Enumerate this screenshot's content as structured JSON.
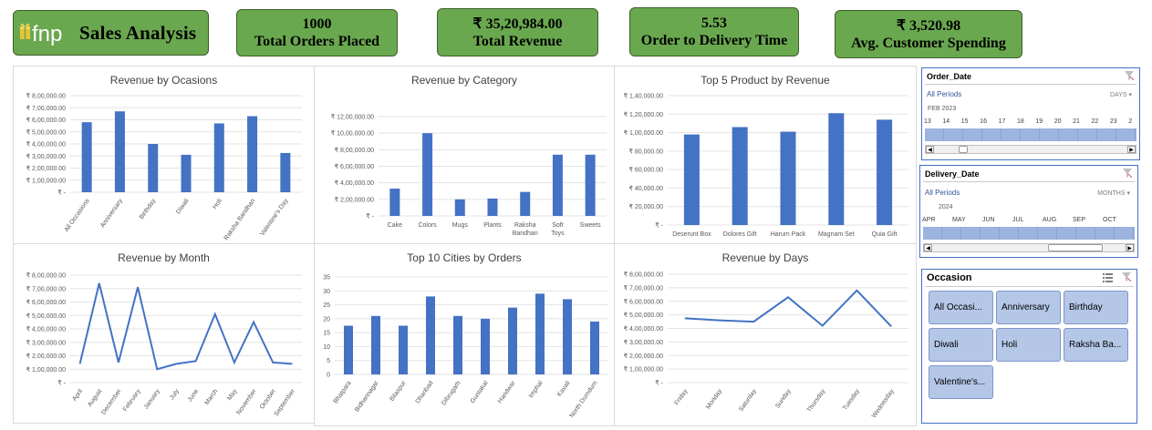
{
  "header": {
    "logo_text": "fnp",
    "title": "Sales Analysis",
    "kpis": [
      {
        "value": "1000",
        "label": "Total Orders Placed"
      },
      {
        "value": "₹ 35,20,984.00",
        "label": "Total Revenue"
      },
      {
        "value": "5.53",
        "label": "Order to Delivery Time"
      },
      {
        "value": "₹ 3,520.98",
        "label": "Avg. Customer Spending"
      }
    ]
  },
  "chart_data": [
    {
      "type": "bar",
      "title": "Revenue by Ocasions",
      "categories": [
        "All Occasions",
        "Anniversary",
        "Birthday",
        "Diwali",
        "Holi",
        "Raksha Bandhan",
        "Valentine's Day"
      ],
      "values": [
        580000,
        670000,
        400000,
        310000,
        570000,
        630000,
        325000
      ],
      "yticks": [
        "₹ -",
        "₹ 1,00,000.00",
        "₹ 2,00,000.00",
        "₹ 3,00,000.00",
        "₹ 4,00,000.00",
        "₹ 5,00,000.00",
        "₹ 6,00,000.00",
        "₹ 7,00,000.00",
        "₹ 8,00,000.00"
      ],
      "ylim": [
        0,
        800000
      ]
    },
    {
      "type": "bar",
      "title": "Revenue by Category",
      "categories": [
        "Cake",
        "Colors",
        "Mugs",
        "Plants",
        "Raksha Bandhan",
        "Soft Toys",
        "Sweets"
      ],
      "values": [
        330000,
        1000000,
        200000,
        210000,
        290000,
        740000,
        740000
      ],
      "yticks": [
        "₹ -",
        "₹ 2,00,000.00",
        "₹ 4,00,000.00",
        "₹ 6,00,000.00",
        "₹ 8,00,000.00",
        "₹ 10,00,000.00",
        "₹ 12,00,000.00"
      ],
      "ylim": [
        0,
        1200000
      ]
    },
    {
      "type": "bar",
      "title": "Top 5 Product by Revenue",
      "categories": [
        "Deserunt Box",
        "Dolores Gift",
        "Harum Pack",
        "Magnam Set",
        "Quia Gift"
      ],
      "values": [
        98000,
        106000,
        101000,
        121000,
        114000
      ],
      "yticks": [
        "₹ -",
        "₹ 20,000.00",
        "₹ 40,000.00",
        "₹ 60,000.00",
        "₹ 80,000.00",
        "₹ 1,00,000.00",
        "₹ 1,20,000.00",
        "₹ 1,40,000.00"
      ],
      "ylim": [
        0,
        140000
      ]
    },
    {
      "type": "line",
      "title": "Revenue by Month",
      "categories": [
        "April",
        "August",
        "December",
        "February",
        "January",
        "July",
        "June",
        "March",
        "May",
        "November",
        "October",
        "September"
      ],
      "values": [
        140000,
        740000,
        150000,
        710000,
        100000,
        140000,
        160000,
        510000,
        150000,
        450000,
        150000,
        140000
      ],
      "yticks": [
        "₹ -",
        "₹ 1,00,000.00",
        "₹ 2,00,000.00",
        "₹ 3,00,000.00",
        "₹ 4,00,000.00",
        "₹ 5,00,000.00",
        "₹ 6,00,000.00",
        "₹ 7,00,000.00",
        "₹ 8,00,000.00"
      ],
      "ylim": [
        0,
        800000
      ]
    },
    {
      "type": "bar",
      "title": "Top  10 Cities by Orders",
      "categories": [
        "Bhatpara",
        "Bidhannagar",
        "Bilaspur",
        "Dhanbad",
        "Dibrugarh",
        "Guntakal",
        "Haridwar",
        "Imphal",
        "Kavali",
        "North Dumdum"
      ],
      "values": [
        17.5,
        21,
        17.5,
        28,
        21,
        20,
        24,
        29,
        27,
        19
      ],
      "yticks": [
        "0",
        "5",
        "10",
        "15",
        "20",
        "25",
        "30",
        "35"
      ],
      "ylim": [
        0,
        35
      ]
    },
    {
      "type": "line",
      "title": "Revenue by Days",
      "categories": [
        "Friday",
        "Monday",
        "Saturday",
        "Sunday",
        "Thursday",
        "Tuesday",
        "Wednesday"
      ],
      "values": [
        475000,
        460000,
        450000,
        630000,
        420000,
        680000,
        415000
      ],
      "yticks": [
        "₹ -",
        "₹ 1,00,000.00",
        "₹ 2,00,000.00",
        "₹ 3,00,000.00",
        "₹ 4,00,000.00",
        "₹ 5,00,000.00",
        "₹ 6,00,000.00",
        "₹ 7,00,000.00",
        "₹ 8,00,000.00"
      ],
      "ylim": [
        0,
        800000
      ]
    }
  ],
  "slicers": {
    "order_date": {
      "title": "Order_Date",
      "all_label": "All Periods",
      "level": "DAYS",
      "year": "FEB 2023",
      "ticks": [
        "13",
        "14",
        "15",
        "16",
        "17",
        "18",
        "19",
        "20",
        "21",
        "22",
        "23",
        "2"
      ]
    },
    "delivery_date": {
      "title": "Delivery_Date",
      "all_label": "All Periods",
      "level": "MONTHS",
      "year": "2024",
      "ticks": [
        "APR",
        "MAY",
        "JUN",
        "JUL",
        "AUG",
        "SEP",
        "OCT"
      ]
    },
    "occasion": {
      "title": "Occasion",
      "items": [
        "All Occasi...",
        "Anniversary",
        "Birthday",
        "Diwali",
        "Holi",
        "Raksha Ba...",
        "Valentine's..."
      ]
    }
  },
  "colors": {
    "kpi_fill": "#6aa84f",
    "bar": "#4472c4",
    "slicer_border": "#4472c4",
    "slicer_item": "#b4c7e7"
  }
}
